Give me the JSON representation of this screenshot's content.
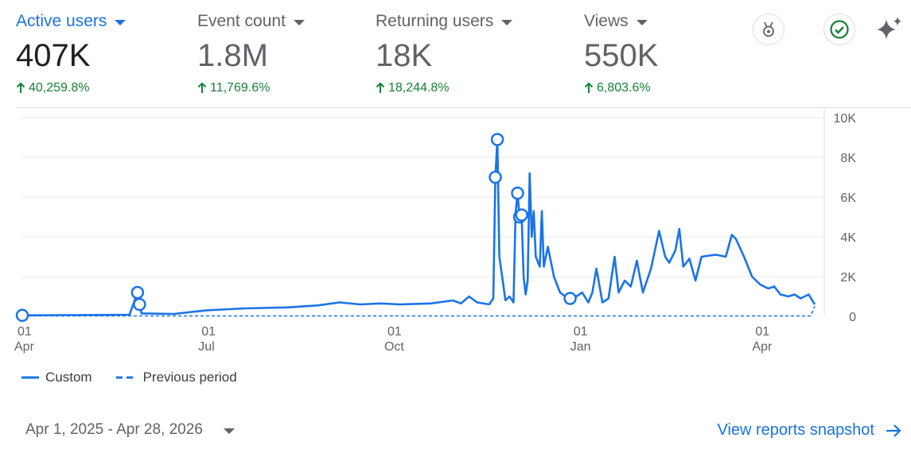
{
  "metrics": [
    {
      "label": "Active users",
      "value": "407K",
      "change": "40,259.8%"
    },
    {
      "label": "Event count",
      "value": "1.8M",
      "change": "11,769.6%"
    },
    {
      "label": "Returning users",
      "value": "18K",
      "change": "18,244.8%"
    },
    {
      "label": "Views",
      "value": "550K",
      "change": "6,803.6%"
    }
  ],
  "toolbar_icons": [
    "insights-badge-icon",
    "check-circle-icon",
    "sparkle-icon"
  ],
  "legend": {
    "current": "Custom",
    "previous": "Previous period"
  },
  "date_range": "Apr 1, 2025 - Apr 28, 2026",
  "view_snapshot": "View reports snapshot",
  "colors": {
    "accent": "#1a73e8",
    "positive": "#188038",
    "grid": "#e8eaed"
  },
  "chart_data": {
    "type": "line",
    "x_range": [
      "2025-04-01",
      "2026-04-28"
    ],
    "ylim": [
      0,
      10000
    ],
    "yticks": [
      "0",
      "2K",
      "4K",
      "6K",
      "8K",
      "10K"
    ],
    "xticks": [
      {
        "date": "2025-04-01",
        "day": "01",
        "month": "Apr"
      },
      {
        "date": "2025-07-01",
        "day": "01",
        "month": "Jul"
      },
      {
        "date": "2025-10-01",
        "day": "01",
        "month": "Oct"
      },
      {
        "date": "2026-01-01",
        "day": "01",
        "month": "Jan"
      },
      {
        "date": "2026-04-01",
        "day": "01",
        "month": "Apr"
      }
    ],
    "grid": true,
    "series": [
      {
        "name": "Custom",
        "style": "solid",
        "points": [
          [
            "2025-04-01",
            50
          ],
          [
            "2025-04-20",
            60
          ],
          [
            "2025-05-10",
            70
          ],
          [
            "2025-05-24",
            80
          ],
          [
            "2025-05-28",
            1200
          ],
          [
            "2025-05-29",
            600
          ],
          [
            "2025-05-30",
            150
          ],
          [
            "2025-06-15",
            120
          ],
          [
            "2025-07-01",
            300
          ],
          [
            "2025-07-20",
            400
          ],
          [
            "2025-08-10",
            450
          ],
          [
            "2025-08-25",
            550
          ],
          [
            "2025-09-05",
            700
          ],
          [
            "2025-09-15",
            600
          ],
          [
            "2025-09-25",
            650
          ],
          [
            "2025-10-05",
            600
          ],
          [
            "2025-10-20",
            650
          ],
          [
            "2025-10-31",
            800
          ],
          [
            "2025-11-04",
            650
          ],
          [
            "2025-11-08",
            1000
          ],
          [
            "2025-11-12",
            700
          ],
          [
            "2025-11-18",
            600
          ],
          [
            "2025-11-20",
            900
          ],
          [
            "2025-11-21",
            7000
          ],
          [
            "2025-11-22",
            8900
          ],
          [
            "2025-11-23",
            3000
          ],
          [
            "2025-11-26",
            800
          ],
          [
            "2025-11-28",
            1000
          ],
          [
            "2025-11-30",
            700
          ],
          [
            "2025-12-01",
            5200
          ],
          [
            "2025-12-02",
            6200
          ],
          [
            "2025-12-03",
            5000
          ],
          [
            "2025-12-04",
            5100
          ],
          [
            "2025-12-05",
            2000
          ],
          [
            "2025-12-06",
            1100
          ],
          [
            "2025-12-07",
            1800
          ],
          [
            "2025-12-08",
            7200
          ],
          [
            "2025-12-09",
            4000
          ],
          [
            "2025-12-10",
            5300
          ],
          [
            "2025-12-11",
            3000
          ],
          [
            "2025-12-13",
            2500
          ],
          [
            "2025-12-14",
            5300
          ],
          [
            "2025-12-15",
            2500
          ],
          [
            "2025-12-17",
            3500
          ],
          [
            "2025-12-20",
            2000
          ],
          [
            "2025-12-23",
            1200
          ],
          [
            "2025-12-27",
            900
          ],
          [
            "2025-12-31",
            1000
          ],
          [
            "2026-01-03",
            1200
          ],
          [
            "2026-01-06",
            700
          ],
          [
            "2026-01-08",
            1200
          ],
          [
            "2026-01-10",
            2400
          ],
          [
            "2026-01-13",
            700
          ],
          [
            "2026-01-16",
            900
          ],
          [
            "2026-01-19",
            3000
          ],
          [
            "2026-01-21",
            1200
          ],
          [
            "2026-01-24",
            1800
          ],
          [
            "2026-01-27",
            1500
          ],
          [
            "2026-01-30",
            2800
          ],
          [
            "2026-02-02",
            1200
          ],
          [
            "2026-02-06",
            2400
          ],
          [
            "2026-02-10",
            4300
          ],
          [
            "2026-02-13",
            3000
          ],
          [
            "2026-02-15",
            2700
          ],
          [
            "2026-02-18",
            3300
          ],
          [
            "2026-02-20",
            4400
          ],
          [
            "2026-02-22",
            2500
          ],
          [
            "2026-02-25",
            2900
          ],
          [
            "2026-02-28",
            1800
          ],
          [
            "2026-03-03",
            3000
          ],
          [
            "2026-03-10",
            3100
          ],
          [
            "2026-03-15",
            3000
          ],
          [
            "2026-03-18",
            4100
          ],
          [
            "2026-03-20",
            3900
          ],
          [
            "2026-03-24",
            3000
          ],
          [
            "2026-03-28",
            2000
          ],
          [
            "2026-04-01",
            1600
          ],
          [
            "2026-04-05",
            1400
          ],
          [
            "2026-04-08",
            1500
          ],
          [
            "2026-04-11",
            1100
          ],
          [
            "2026-04-15",
            1000
          ],
          [
            "2026-04-18",
            1100
          ],
          [
            "2026-04-21",
            900
          ],
          [
            "2026-04-25",
            1100
          ],
          [
            "2026-04-28",
            600
          ]
        ]
      },
      {
        "name": "Previous period",
        "style": "dashed",
        "points": [
          [
            "2025-04-01",
            20
          ],
          [
            "2026-04-26",
            20
          ],
          [
            "2026-04-28",
            500
          ]
        ]
      }
    ],
    "annotated_points": [
      [
        "2025-04-01",
        50
      ],
      [
        "2025-05-28",
        1200
      ],
      [
        "2025-05-29",
        600
      ],
      [
        "2025-11-21",
        7000
      ],
      [
        "2025-11-22",
        8900
      ],
      [
        "2025-12-02",
        6200
      ],
      [
        "2025-12-03",
        5000
      ],
      [
        "2025-12-04",
        5100
      ],
      [
        "2025-12-28",
        900
      ]
    ]
  }
}
